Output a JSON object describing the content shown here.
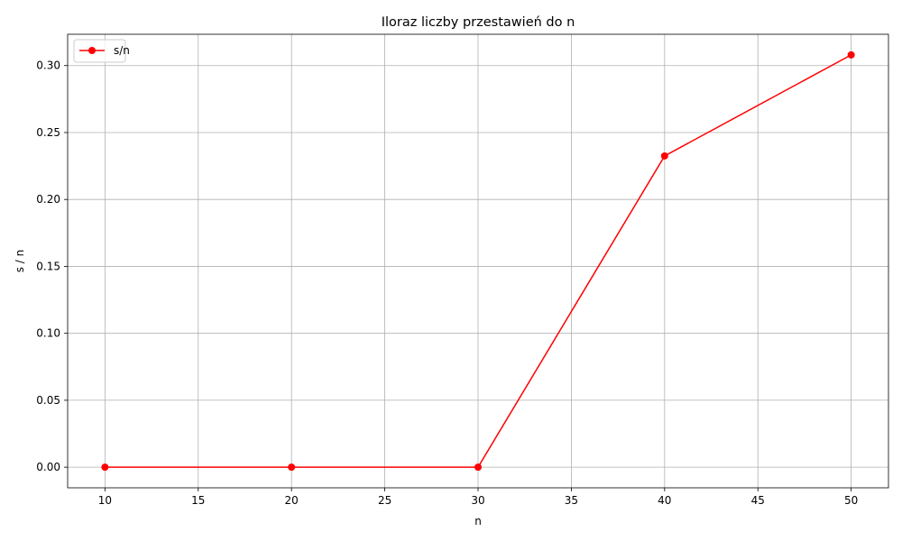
{
  "chart_data": {
    "type": "line",
    "title": "Iloraz liczby przestawień do n",
    "xlabel": "n",
    "ylabel": "s / n",
    "x": [
      10,
      20,
      30,
      40,
      50
    ],
    "series": [
      {
        "name": "s/n",
        "color": "#ff0000",
        "marker": "circle",
        "values": [
          0.0,
          0.0,
          0.0,
          0.2325,
          0.308
        ]
      }
    ],
    "xlim": [
      8,
      52
    ],
    "ylim": [
      -0.0154,
      0.3234
    ],
    "xticks": [
      10,
      15,
      20,
      25,
      30,
      35,
      40,
      45,
      50
    ],
    "xtick_labels": [
      "10",
      "15",
      "20",
      "25",
      "30",
      "35",
      "40",
      "45",
      "50"
    ],
    "yticks": [
      0.0,
      0.05,
      0.1,
      0.15,
      0.2,
      0.25,
      0.3
    ],
    "ytick_labels": [
      "0.00",
      "0.05",
      "0.10",
      "0.15",
      "0.20",
      "0.25",
      "0.30"
    ],
    "grid": true,
    "legend_position": "top-left"
  }
}
